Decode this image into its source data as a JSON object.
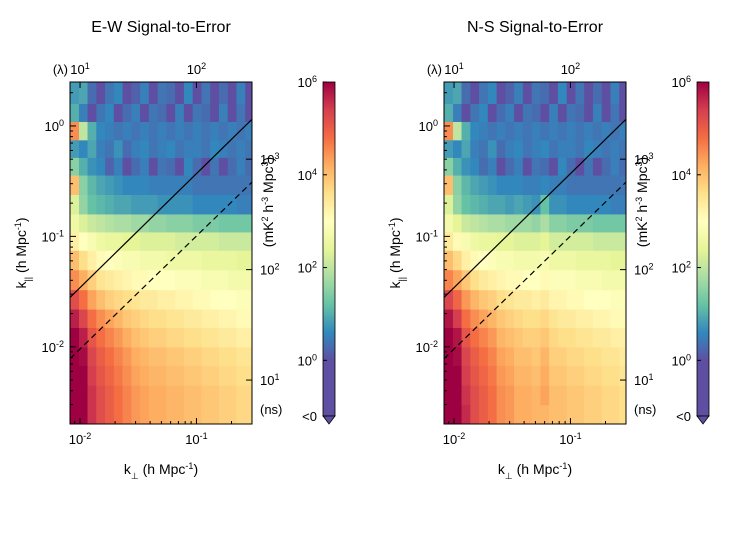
{
  "palette": [
    "#9e0142",
    "#d53e4f",
    "#f46d43",
    "#fdae61",
    "#fee08b",
    "#ffffbf",
    "#e6f598",
    "#abdda4",
    "#66c2a5",
    "#3288bd",
    "#5e4fa2"
  ],
  "colorbar": {
    "ticks": [
      {
        "value": 6,
        "base": "10",
        "exp": "6"
      },
      {
        "value": 4,
        "base": "10",
        "exp": "4"
      },
      {
        "value": 2,
        "base": "10",
        "exp": "2"
      },
      {
        "value": 0,
        "base": "10",
        "exp": "0"
      },
      {
        "value": -1.2,
        "base": "<0",
        "exp": ""
      }
    ],
    "range": [
      -1.2,
      6
    ],
    "under_color": "#5e4fa2"
  },
  "chart_data": [
    {
      "type": "heatmap",
      "title": "E-W Signal-to-Error",
      "xlabel": "k",
      "xlabel_sub": "⊥",
      "xlabel_unit_pre": " (h Mpc",
      "xlabel_unit_exp": "-1",
      "xlabel_unit_post": ")",
      "ylabel": "k",
      "ylabel_sub": "||",
      "ylabel_unit_pre": " (h Mpc",
      "ylabel_unit_exp": "-1",
      "ylabel_unit_post": ")",
      "xlim": [
        0.0082,
        0.3
      ],
      "ylim": [
        0.002,
        2.5
      ],
      "x_ticks": [
        {
          "value": 0.01,
          "base": "10",
          "exp": "-2"
        },
        {
          "value": 0.1,
          "base": "10",
          "exp": "-1"
        }
      ],
      "y_ticks": [
        {
          "value": 1,
          "base": "10",
          "exp": "0"
        },
        {
          "value": 0.1,
          "base": "10",
          "exp": "-1"
        },
        {
          "value": 0.01,
          "base": "10",
          "exp": "-2"
        }
      ],
      "top_axis_label": "(λ)",
      "top_ticks": [
        {
          "value": 10,
          "base": "10",
          "exp": "1"
        },
        {
          "value": 100,
          "base": "10",
          "exp": "2"
        }
      ],
      "top_lambda_per_k": 1000,
      "right_axis_label": "(ns)",
      "right_ticks": [
        {
          "value": 1000,
          "base": "10",
          "exp": "3"
        },
        {
          "value": 100,
          "base": "10",
          "exp": "2"
        },
        {
          "value": 10,
          "base": "10",
          "exp": "1"
        }
      ],
      "right_ns_per_k": 2000,
      "colorbar_label_pre": "(mK",
      "colorbar_label_e1": "2",
      "colorbar_label_mid": " h",
      "colorbar_label_e2": "-3",
      "colorbar_label_mid2": " Mpc",
      "colorbar_label_e3": "3",
      "colorbar_label_post": ")",
      "horizon_line": [
        [
          0.0082,
          0.028
        ],
        [
          0.3,
          1.15
        ]
      ],
      "buffer_line": [
        [
          0.0082,
          0.0078
        ],
        [
          0.3,
          0.31
        ]
      ],
      "k_perp_bins": [
        0.0082,
        0.0098,
        0.0116,
        0.0138,
        0.0164,
        0.0195,
        0.0232,
        0.0276,
        0.0328,
        0.039,
        0.0464,
        0.0552,
        0.0656,
        0.078,
        0.0928,
        0.1104,
        0.1312,
        0.156,
        0.1856,
        0.2208,
        0.2624,
        0.3
      ],
      "k_par_bins": [
        0.002,
        0.003,
        0.0045,
        0.0068,
        0.01,
        0.015,
        0.022,
        0.033,
        0.05,
        0.075,
        0.11,
        0.16,
        0.24,
        0.36,
        0.52,
        0.75,
        1.1,
        1.6,
        2.5
      ],
      "signal_to_error_log10": [
        [
          6.0,
          6.0,
          5.5,
          5.2,
          5.0,
          4.8,
          4.6,
          4.4,
          4.3,
          4.2,
          4.2,
          4.1,
          4.1,
          4.0,
          4.0,
          3.9,
          3.9,
          3.8,
          3.8,
          3.7,
          3.7
        ],
        [
          6.0,
          6.0,
          5.5,
          5.2,
          5.0,
          4.8,
          4.6,
          4.4,
          4.3,
          4.2,
          4.2,
          4.1,
          4.1,
          4.0,
          4.0,
          3.9,
          3.9,
          3.8,
          3.8,
          3.7,
          3.7
        ],
        [
          6.0,
          6.0,
          5.4,
          5.1,
          4.9,
          4.7,
          4.5,
          4.3,
          4.2,
          4.1,
          4.1,
          4.0,
          4.0,
          3.9,
          3.9,
          3.8,
          3.8,
          3.7,
          3.7,
          3.6,
          3.6
        ],
        [
          6.0,
          5.9,
          5.3,
          5.0,
          4.8,
          4.6,
          4.4,
          4.2,
          4.1,
          4.0,
          4.0,
          3.9,
          3.9,
          3.8,
          3.8,
          3.7,
          3.7,
          3.6,
          3.6,
          3.5,
          3.5
        ],
        [
          6.0,
          5.7,
          5.1,
          4.8,
          4.6,
          4.4,
          4.2,
          4.0,
          3.9,
          3.8,
          3.8,
          3.7,
          3.7,
          3.6,
          3.6,
          3.5,
          3.5,
          3.4,
          3.4,
          3.3,
          3.3
        ],
        [
          5.7,
          5.3,
          4.8,
          4.5,
          4.3,
          4.1,
          3.9,
          3.8,
          3.7,
          3.6,
          3.6,
          3.5,
          3.5,
          3.4,
          3.4,
          3.3,
          3.3,
          3.2,
          3.2,
          3.1,
          3.1
        ],
        [
          5.2,
          4.8,
          4.3,
          4.0,
          3.8,
          3.7,
          3.6,
          3.5,
          3.4,
          3.4,
          3.3,
          3.3,
          3.2,
          3.2,
          3.1,
          3.1,
          3.0,
          3.0,
          3.0,
          2.9,
          2.9
        ],
        [
          4.5,
          4.2,
          3.8,
          3.5,
          3.4,
          3.3,
          3.2,
          3.1,
          3.1,
          3.0,
          3.0,
          3.0,
          2.9,
          2.9,
          2.9,
          2.8,
          2.8,
          2.8,
          2.7,
          2.7,
          2.7
        ],
        [
          4.0,
          3.6,
          3.3,
          3.1,
          3.0,
          2.9,
          2.8,
          2.8,
          2.7,
          2.7,
          2.7,
          2.6,
          2.6,
          2.6,
          2.6,
          2.5,
          2.5,
          2.5,
          2.5,
          2.4,
          2.4
        ],
        [
          3.3,
          3.0,
          2.8,
          2.6,
          2.5,
          2.5,
          2.4,
          2.4,
          2.3,
          2.3,
          2.3,
          2.3,
          2.2,
          2.2,
          2.2,
          2.2,
          2.2,
          2.1,
          2.1,
          2.1,
          2.1
        ],
        [
          2.6,
          2.3,
          2.1,
          2.0,
          1.9,
          1.8,
          1.8,
          1.7,
          1.7,
          1.6,
          1.6,
          1.5,
          1.5,
          1.5,
          1.4,
          1.4,
          1.4,
          1.3,
          1.3,
          1.3,
          1.3
        ],
        [
          2.3,
          1.6,
          1.2,
          1.1,
          1.0,
          0.9,
          0.9,
          0.8,
          0.8,
          0.8,
          0.7,
          0.7,
          0.7,
          0.7,
          0.6,
          0.6,
          0.6,
          0.6,
          0.6,
          0.5,
          0.5
        ],
        [
          4.0,
          1.5,
          1.1,
          0.9,
          0.8,
          0.7,
          0.6,
          0.6,
          0.6,
          0.5,
          0.5,
          0.5,
          0.5,
          0.5,
          0.4,
          0.4,
          0.4,
          0.4,
          0.4,
          0.4,
          0.4
        ],
        [
          1.5,
          1.0,
          0.7,
          0.6,
          0.2,
          0.5,
          -1.2,
          0.3,
          0.5,
          -1.2,
          0.4,
          0.3,
          -1.2,
          0.6,
          0.3,
          -1.2,
          0.4,
          -1.2,
          0.3,
          0.5,
          0.3
        ],
        [
          0.8,
          0.6,
          0.9,
          0.5,
          0.4,
          0.7,
          0.3,
          0.5,
          0.6,
          0.4,
          0.5,
          0.6,
          0.4,
          0.5,
          0.5,
          0.4,
          0.6,
          0.5,
          0.4,
          0.5,
          0.4
        ],
        [
          4.5,
          2.0,
          1.0,
          0.6,
          0.5,
          0.4,
          0.5,
          0.4,
          0.5,
          0.4,
          0.5,
          0.4,
          0.5,
          0.4,
          0.5,
          0.4,
          0.5,
          0.4,
          0.5,
          0.4,
          0.5
        ],
        [
          1.0,
          0.5,
          -1.2,
          0.4,
          0.6,
          -1.2,
          0.3,
          0.5,
          -1.2,
          0.4,
          0.3,
          -1.2,
          0.5,
          -1.2,
          0.4,
          0.3,
          -1.2,
          0.5,
          -1.2,
          0.4,
          -1.2
        ],
        [
          0.8,
          0.9,
          0.3,
          -1.2,
          0.4,
          0.6,
          -1.2,
          0.2,
          0.5,
          -1.2,
          0.4,
          0.3,
          -1.2,
          0.6,
          -1.2,
          0.4,
          -1.2,
          0.3,
          -1.2,
          0.5,
          -1.2
        ]
      ]
    },
    {
      "type": "heatmap",
      "title": "N-S Signal-to-Error",
      "xlabel": "k",
      "xlabel_sub": "⊥",
      "xlabel_unit_pre": " (h Mpc",
      "xlabel_unit_exp": "-1",
      "xlabel_unit_post": ")",
      "ylabel": "k",
      "ylabel_sub": "||",
      "ylabel_unit_pre": " (h Mpc",
      "ylabel_unit_exp": "-1",
      "ylabel_unit_post": ")",
      "xlim": [
        0.0082,
        0.3
      ],
      "ylim": [
        0.002,
        2.5
      ],
      "x_ticks": [
        {
          "value": 0.01,
          "base": "10",
          "exp": "-2"
        },
        {
          "value": 0.1,
          "base": "10",
          "exp": "-1"
        }
      ],
      "y_ticks": [
        {
          "value": 1,
          "base": "10",
          "exp": "0"
        },
        {
          "value": 0.1,
          "base": "10",
          "exp": "-1"
        },
        {
          "value": 0.01,
          "base": "10",
          "exp": "-2"
        }
      ],
      "top_axis_label": "(λ)",
      "top_ticks": [
        {
          "value": 10,
          "base": "10",
          "exp": "1"
        },
        {
          "value": 100,
          "base": "10",
          "exp": "2"
        }
      ],
      "top_lambda_per_k": 1000,
      "right_axis_label": "(ns)",
      "right_ticks": [
        {
          "value": 1000,
          "base": "10",
          "exp": "3"
        },
        {
          "value": 100,
          "base": "10",
          "exp": "2"
        },
        {
          "value": 10,
          "base": "10",
          "exp": "1"
        }
      ],
      "right_ns_per_k": 2000,
      "colorbar_label_pre": "(mK",
      "colorbar_label_e1": "2",
      "colorbar_label_mid": " h",
      "colorbar_label_e2": "-3",
      "colorbar_label_mid2": " Mpc",
      "colorbar_label_e3": "3",
      "colorbar_label_post": ")",
      "horizon_line": [
        [
          0.0082,
          0.028
        ],
        [
          0.3,
          1.15
        ]
      ],
      "buffer_line": [
        [
          0.0082,
          0.0078
        ],
        [
          0.3,
          0.31
        ]
      ],
      "k_perp_bins": [
        0.0082,
        0.0098,
        0.0116,
        0.0138,
        0.0164,
        0.0195,
        0.0232,
        0.0276,
        0.0328,
        0.039,
        0.0464,
        0.0552,
        0.0656,
        0.078,
        0.0928,
        0.1104,
        0.1312,
        0.156,
        0.1856,
        0.2208,
        0.2624,
        0.3
      ],
      "k_par_bins": [
        0.002,
        0.003,
        0.0045,
        0.0068,
        0.01,
        0.015,
        0.022,
        0.033,
        0.05,
        0.075,
        0.11,
        0.16,
        0.24,
        0.36,
        0.52,
        0.75,
        1.1,
        1.6,
        2.5
      ],
      "signal_to_error_log10": [
        [
          6.0,
          6.0,
          5.6,
          5.2,
          5.0,
          4.8,
          4.5,
          4.4,
          4.2,
          4.2,
          4.1,
          4.1,
          4.0,
          4.0,
          3.9,
          3.9,
          3.8,
          3.8,
          3.7,
          3.7,
          3.6
        ],
        [
          6.0,
          6.0,
          5.5,
          5.2,
          5.0,
          4.8,
          4.5,
          4.4,
          4.2,
          4.2,
          4.1,
          4.3,
          4.0,
          4.0,
          3.9,
          3.9,
          3.8,
          3.8,
          3.7,
          3.7,
          3.6
        ],
        [
          6.0,
          6.0,
          5.4,
          5.1,
          4.9,
          4.7,
          4.4,
          4.3,
          4.1,
          4.1,
          4.0,
          4.2,
          3.9,
          3.9,
          3.8,
          3.8,
          3.7,
          3.7,
          3.6,
          3.6,
          3.5
        ],
        [
          6.0,
          5.9,
          5.3,
          5.0,
          4.8,
          4.6,
          4.3,
          4.2,
          4.0,
          4.0,
          3.9,
          4.1,
          3.8,
          3.8,
          3.7,
          3.7,
          3.6,
          3.6,
          3.5,
          3.5,
          3.4
        ],
        [
          6.0,
          5.8,
          5.1,
          4.8,
          4.6,
          4.4,
          4.1,
          4.0,
          3.9,
          3.8,
          3.8,
          3.9,
          3.7,
          3.6,
          3.6,
          3.5,
          3.5,
          3.4,
          3.4,
          3.3,
          3.3
        ],
        [
          5.8,
          5.4,
          4.8,
          4.5,
          4.3,
          4.1,
          3.9,
          3.8,
          3.7,
          3.6,
          3.6,
          3.7,
          3.5,
          3.4,
          3.4,
          3.3,
          3.3,
          3.2,
          3.2,
          3.1,
          3.1
        ],
        [
          5.3,
          4.9,
          4.4,
          4.1,
          3.9,
          3.8,
          3.6,
          3.5,
          3.4,
          3.4,
          3.3,
          3.4,
          3.2,
          3.2,
          3.1,
          3.1,
          3.0,
          3.0,
          3.0,
          2.9,
          2.9
        ],
        [
          4.6,
          4.3,
          3.9,
          3.6,
          3.4,
          3.3,
          3.2,
          3.1,
          3.1,
          3.0,
          3.0,
          3.1,
          2.9,
          2.9,
          2.9,
          2.8,
          2.8,
          2.8,
          2.7,
          2.7,
          2.7
        ],
        [
          4.0,
          3.7,
          3.3,
          3.1,
          3.0,
          2.9,
          2.8,
          2.8,
          2.7,
          2.7,
          2.7,
          2.8,
          2.6,
          2.6,
          2.6,
          2.5,
          2.5,
          2.5,
          2.5,
          2.4,
          2.4
        ],
        [
          3.4,
          3.1,
          2.8,
          2.6,
          2.5,
          2.5,
          2.4,
          2.4,
          2.3,
          2.3,
          2.3,
          2.4,
          2.2,
          2.2,
          2.2,
          2.2,
          2.2,
          2.1,
          2.1,
          2.1,
          2.1
        ],
        [
          2.7,
          2.4,
          2.1,
          2.0,
          1.9,
          1.8,
          1.8,
          1.7,
          1.7,
          1.7,
          1.6,
          1.8,
          1.5,
          1.5,
          1.4,
          1.4,
          1.4,
          1.3,
          1.3,
          1.3,
          1.3
        ],
        [
          2.3,
          1.6,
          1.2,
          1.1,
          1.0,
          0.9,
          0.9,
          0.8,
          0.9,
          0.8,
          0.7,
          1.2,
          0.7,
          0.7,
          0.6,
          0.6,
          0.6,
          0.6,
          0.6,
          0.5,
          0.5
        ],
        [
          4.0,
          1.5,
          1.1,
          0.9,
          0.8,
          0.7,
          0.6,
          0.6,
          0.6,
          0.5,
          0.5,
          0.6,
          0.5,
          0.5,
          0.4,
          0.4,
          0.4,
          0.4,
          0.4,
          0.4,
          0.4
        ],
        [
          1.5,
          1.0,
          0.7,
          0.6,
          0.3,
          0.5,
          -1.2,
          0.3,
          0.5,
          -1.2,
          0.4,
          0.3,
          -1.2,
          0.6,
          0.3,
          -1.2,
          0.4,
          -1.2,
          0.3,
          0.5,
          0.3
        ],
        [
          0.8,
          0.6,
          0.9,
          0.5,
          0.4,
          0.7,
          0.3,
          0.5,
          0.6,
          0.4,
          0.5,
          0.6,
          0.4,
          0.5,
          0.5,
          0.4,
          0.6,
          0.5,
          0.4,
          0.5,
          0.4
        ],
        [
          4.5,
          2.0,
          1.0,
          0.6,
          0.5,
          0.4,
          0.5,
          0.4,
          0.5,
          0.4,
          0.5,
          0.4,
          0.5,
          0.4,
          0.5,
          0.4,
          0.5,
          0.4,
          0.5,
          0.4,
          0.5
        ],
        [
          1.0,
          0.5,
          -1.2,
          0.4,
          0.6,
          -1.2,
          0.3,
          0.5,
          -1.2,
          0.4,
          0.3,
          -1.2,
          0.5,
          -1.2,
          0.4,
          0.3,
          -1.2,
          0.5,
          -1.2,
          0.4,
          -1.2
        ],
        [
          0.8,
          0.9,
          0.3,
          -1.2,
          0.4,
          0.6,
          -1.2,
          0.2,
          0.5,
          -1.2,
          0.4,
          0.3,
          -1.2,
          0.6,
          -1.2,
          0.4,
          -1.2,
          0.3,
          -1.2,
          0.5,
          -1.2
        ]
      ]
    }
  ]
}
